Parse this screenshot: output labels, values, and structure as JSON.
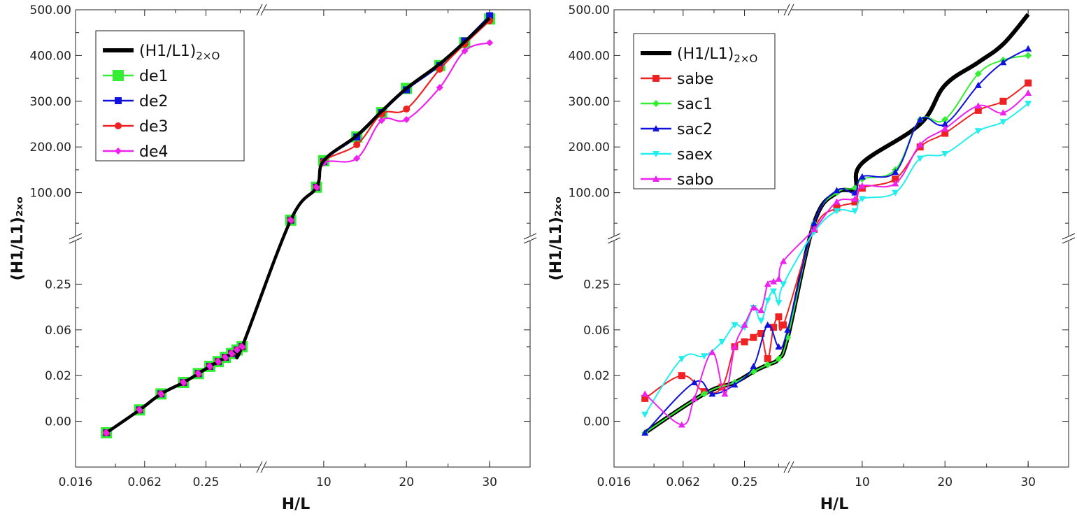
{
  "colors": {
    "black": "#000000",
    "green": "#33ee33",
    "blue": "#1111dd",
    "red": "#ee2222",
    "magenta": "#ee22ee",
    "cyan": "#22eeee"
  },
  "chart_data": [
    {
      "type": "line",
      "xlabel": "H/L",
      "ylabel": "(H1/L1)₂ₓₒ",
      "x_ticks": [
        "0.016",
        "0.062",
        "0.25",
        "10",
        "20",
        "30"
      ],
      "y_ticks": [
        "0.00",
        "0.02",
        "0.06",
        "0.25",
        "100.00",
        "200.00",
        "300.00",
        "400.00",
        "500.00"
      ],
      "legend_position": "top-left",
      "legend": [
        {
          "label": "(H1/L1)",
          "sub": "2×O",
          "color": "#000000",
          "marker": "none"
        },
        {
          "label": "de1",
          "color": "#33ee33",
          "marker": "square"
        },
        {
          "label": "de2",
          "color": "#1111dd",
          "marker": "square"
        },
        {
          "label": "de3",
          "color": "#ee2222",
          "marker": "circle"
        },
        {
          "label": "de4",
          "color": "#ee22ee",
          "marker": "diamond"
        }
      ],
      "x": [
        0.025,
        0.055,
        0.09,
        0.15,
        0.21,
        0.27,
        0.32,
        0.37,
        0.42,
        0.47,
        0.52,
        2.5,
        5,
        10,
        14,
        17,
        20,
        24,
        27,
        30
      ],
      "reference": [
        -0.01,
        0.005,
        0.012,
        0.017,
        0.021,
        0.025,
        0.028,
        0.031,
        0.034,
        0.037,
        0.04,
        55,
        112,
        170,
        225,
        278,
        328,
        382,
        430,
        482
      ],
      "series": [
        {
          "name": "de1",
          "values": [
            -0.01,
            0.005,
            0.012,
            0.017,
            0.021,
            0.025,
            0.028,
            0.031,
            0.034,
            0.037,
            0.04,
            55,
            112,
            170,
            222,
            275,
            328,
            378,
            428,
            480
          ]
        },
        {
          "name": "de2",
          "values": [
            -0.01,
            0.005,
            0.012,
            0.017,
            0.021,
            0.025,
            0.028,
            0.031,
            0.034,
            0.037,
            0.04,
            55,
            112,
            168,
            222,
            275,
            325,
            378,
            432,
            487
          ]
        },
        {
          "name": "de3",
          "values": [
            -0.01,
            0.005,
            0.012,
            0.017,
            0.021,
            0.025,
            0.028,
            0.031,
            0.034,
            0.037,
            0.04,
            55,
            112,
            168,
            205,
            272,
            283,
            370,
            425,
            476
          ]
        },
        {
          "name": "de4",
          "values": [
            -0.01,
            0.005,
            0.012,
            0.017,
            0.021,
            0.025,
            0.028,
            0.031,
            0.034,
            0.037,
            0.04,
            55,
            112,
            165,
            175,
            258,
            260,
            330,
            410,
            428
          ]
        }
      ]
    },
    {
      "type": "line",
      "xlabel": "H/L",
      "ylabel": "(H1/L1)₂ₓₒ",
      "x_ticks": [
        "0.016",
        "0.062",
        "0.25",
        "10",
        "20",
        "30"
      ],
      "y_ticks": [
        "0.00",
        "0.02",
        "0.06",
        "0.25",
        "100.00",
        "200.00",
        "300.00",
        "400.00",
        "500.00"
      ],
      "legend_position": "top-left",
      "legend": [
        {
          "label": "(H1/L1)",
          "sub": "2×O",
          "color": "#000000",
          "marker": "none"
        },
        {
          "label": "sabe",
          "color": "#ee2222",
          "marker": "square"
        },
        {
          "label": "sac1",
          "color": "#33ee33",
          "marker": "diamond"
        },
        {
          "label": "sac2",
          "color": "#1111dd",
          "marker": "triangle"
        },
        {
          "label": "saex",
          "color": "#22eeee",
          "marker": "triangle-down"
        },
        {
          "label": "sabo",
          "color": "#ee22ee",
          "marker": "triangle"
        }
      ],
      "reference": {
        "x": [
          0.025,
          0.1,
          0.2,
          0.3,
          0.4,
          0.5,
          0.6,
          1.5,
          3,
          5,
          10,
          17,
          20,
          24,
          27,
          30
        ],
        "values": [
          -0.01,
          0.012,
          0.017,
          0.022,
          0.026,
          0.03,
          0.05,
          50,
          100,
          110,
          165,
          250,
          335,
          385,
          425,
          490
        ]
      },
      "series": [
        {
          "name": "sabe",
          "x": [
            0.025,
            0.06,
            0.1,
            0.15,
            0.2,
            0.25,
            0.3,
            0.35,
            0.4,
            0.45,
            0.5,
            0.55,
            1.5,
            3,
            5,
            10,
            14,
            17,
            20,
            24,
            27,
            30
          ],
          "values": [
            0.01,
            0.02,
            0.013,
            0.015,
            0.04,
            0.045,
            0.05,
            0.055,
            0.03,
            0.065,
            0.09,
            0.07,
            40,
            75,
            85,
            110,
            130,
            200,
            230,
            280,
            300,
            340
          ]
        },
        {
          "name": "sac1",
          "x": [
            0.025,
            0.1,
            0.2,
            0.3,
            0.4,
            0.5,
            0.6,
            1.5,
            3,
            5,
            10,
            14,
            17,
            20,
            24,
            27,
            30
          ],
          "values": [
            -0.01,
            0.012,
            0.017,
            0.022,
            0.026,
            0.03,
            0.05,
            50,
            100,
            110,
            130,
            150,
            260,
            260,
            360,
            390,
            400
          ]
        },
        {
          "name": "sac2",
          "x": [
            0.025,
            0.08,
            0.12,
            0.2,
            0.3,
            0.4,
            0.5,
            0.6,
            1.5,
            3,
            5,
            10,
            14,
            17,
            20,
            24,
            27,
            30
          ],
          "values": [
            -0.01,
            0.017,
            0.012,
            0.016,
            0.025,
            0.07,
            0.04,
            0.06,
            50,
            105,
            100,
            135,
            145,
            260,
            250,
            335,
            385,
            415
          ]
        },
        {
          "name": "saex",
          "x": [
            0.025,
            0.06,
            0.1,
            0.15,
            0.2,
            0.25,
            0.3,
            0.35,
            0.4,
            0.45,
            0.5,
            0.55,
            1.5,
            3,
            5,
            10,
            14,
            17,
            20,
            24,
            27,
            30
          ],
          "values": [
            0.003,
            0.03,
            0.032,
            0.045,
            0.07,
            0.065,
            0.12,
            0.08,
            0.15,
            0.2,
            0.14,
            0.25,
            35,
            70,
            70,
            90,
            100,
            175,
            185,
            235,
            255,
            295
          ]
        },
        {
          "name": "sabo",
          "x": [
            0.025,
            0.06,
            0.08,
            0.12,
            0.16,
            0.2,
            0.25,
            0.3,
            0.35,
            0.4,
            0.45,
            0.5,
            0.55,
            1.5,
            3,
            5,
            10,
            14,
            17,
            20,
            24,
            27,
            30
          ],
          "values": [
            0.012,
            -0.003,
            0.01,
            0.035,
            0.012,
            0.04,
            0.07,
            0.12,
            0.11,
            0.25,
            0.26,
            0.27,
            0.35,
            40,
            85,
            90,
            115,
            120,
            205,
            240,
            290,
            275,
            318
          ]
        }
      ]
    }
  ]
}
